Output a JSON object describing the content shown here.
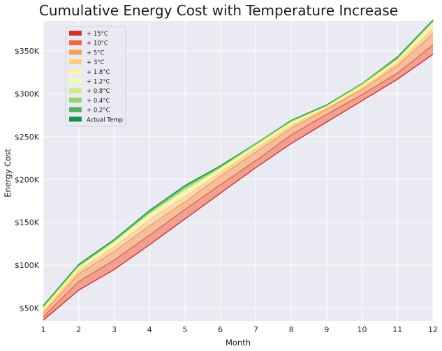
{
  "chart_data": {
    "type": "area",
    "title": "Cumulative Energy Cost with Temperature Increase",
    "xlabel": "Month",
    "ylabel": "Energy Cost",
    "xlim": [
      1,
      12
    ],
    "ylim": [
      35000,
      385000
    ],
    "x": [
      1,
      2,
      3,
      4,
      5,
      6,
      7,
      8,
      9,
      10,
      11,
      12
    ],
    "y_ticks": [
      50000,
      100000,
      150000,
      200000,
      250000,
      300000,
      350000
    ],
    "y_tick_labels": [
      "$50K",
      "$100K",
      "$150K",
      "$200K",
      "$250K",
      "$300K",
      "$350K"
    ],
    "x_tick_labels": [
      "1",
      "2",
      "3",
      "4",
      "5",
      "6",
      "7",
      "8",
      "9",
      "10",
      "11",
      "12"
    ],
    "grid": true,
    "legend_position": "top-left",
    "background": "#eaeaf2",
    "series": [
      {
        "name": "+ 15°C",
        "color": "#d62f27",
        "values": [
          36000,
          71000,
          95000,
          124000,
          154000,
          184000,
          214000,
          242000,
          267000,
          292000,
          317000,
          346000
        ]
      },
      {
        "name": "+ 10°C",
        "color": "#ee6445",
        "values": [
          40000,
          81000,
          106000,
          135000,
          165000,
          194000,
          222000,
          252000,
          276000,
          299000,
          324000,
          357000
        ]
      },
      {
        "name": "+ 5°C",
        "color": "#fa9b58",
        "values": [
          44000,
          90000,
          116000,
          146000,
          174000,
          204000,
          232000,
          260000,
          282000,
          305000,
          333000,
          370000
        ]
      },
      {
        "name": "+ 3°C",
        "color": "#fece7c",
        "values": [
          46000,
          94000,
          121000,
          153000,
          180000,
          208000,
          236000,
          263000,
          283000,
          307000,
          336000,
          376000
        ]
      },
      {
        "name": "+ 1.8°C",
        "color": "#fff1a8",
        "values": [
          48000,
          96000,
          124000,
          157000,
          184000,
          210000,
          238000,
          265000,
          284000,
          308000,
          338000,
          380000
        ]
      },
      {
        "name": "+ 1.2°C",
        "color": "#f4fab0",
        "values": [
          49000,
          97000,
          126000,
          159000,
          186000,
          212000,
          239000,
          266000,
          285000,
          309000,
          339000,
          382000
        ]
      },
      {
        "name": "+ 0.8°C",
        "color": "#d1ec86",
        "values": [
          50000,
          98000,
          127000,
          160000,
          188000,
          213000,
          240000,
          267000,
          285000,
          310000,
          340000,
          383000
        ]
      },
      {
        "name": "+ 0.4°C",
        "color": "#98d368",
        "values": [
          51000,
          99000,
          128000,
          161000,
          190000,
          214000,
          241000,
          268000,
          286000,
          311000,
          341000,
          384000
        ]
      },
      {
        "name": "+ 0.2°C",
        "color": "#4eb15d",
        "values": [
          52000,
          100000,
          129000,
          163000,
          192000,
          215000,
          242000,
          268000,
          286000,
          312000,
          342000,
          385000
        ]
      },
      {
        "name": "Actual Temp",
        "color": "#15904c",
        "values": [
          53000,
          101000,
          130000,
          164000,
          193000,
          216000,
          242000,
          269000,
          287000,
          312000,
          343000,
          386000
        ]
      }
    ]
  }
}
